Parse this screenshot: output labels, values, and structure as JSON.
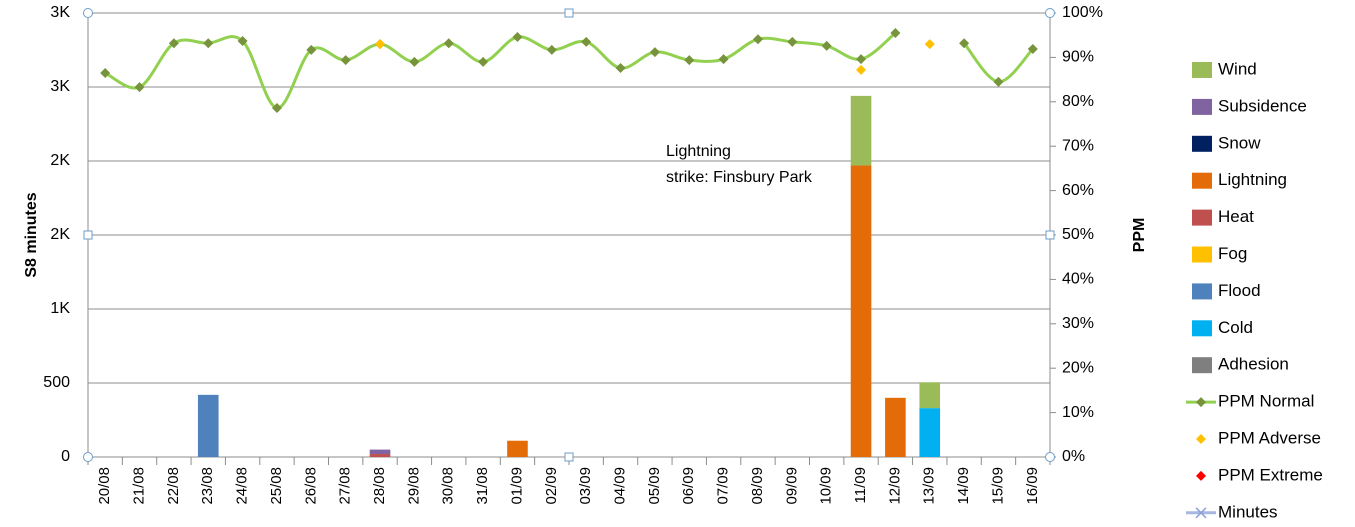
{
  "chart_data": {
    "type": "bar",
    "ylabel": "S8 minutes",
    "y2label": "PPM",
    "annotation": [
      "Lightning",
      "strike: Finsbury Park"
    ],
    "categories": [
      "20/08",
      "21/08",
      "22/08",
      "23/08",
      "24/08",
      "25/08",
      "26/08",
      "27/08",
      "28/08",
      "29/08",
      "30/08",
      "31/08",
      "01/09",
      "02/09",
      "03/09",
      "04/09",
      "05/09",
      "06/09",
      "07/09",
      "08/09",
      "09/09",
      "10/09",
      "11/09",
      "12/09",
      "13/09",
      "14/09",
      "15/09",
      "16/09"
    ],
    "ylim": [
      0,
      3000
    ],
    "yticks": [
      0,
      500,
      {
        "value": 1000,
        "label": "1K"
      },
      {
        "value": 1500,
        "label": "2K"
      },
      {
        "value": 2000,
        "label": "2K"
      },
      {
        "value": 2500,
        "label": "3K"
      },
      {
        "value": 3000,
        "label": "3K"
      }
    ],
    "y2lim": [
      0,
      100
    ],
    "y2ticks": [
      {
        "value": 0,
        "label": "0%"
      },
      {
        "value": 10,
        "label": "10%"
      },
      {
        "value": 20,
        "label": "20%"
      },
      {
        "value": 30,
        "label": "30%"
      },
      {
        "value": 40,
        "label": "40%"
      },
      {
        "value": 50,
        "label": "50%"
      },
      {
        "value": 60,
        "label": "60%"
      },
      {
        "value": 70,
        "label": "70%"
      },
      {
        "value": 80,
        "label": "80%"
      },
      {
        "value": 90,
        "label": "90%"
      },
      {
        "value": 100,
        "label": "100%"
      }
    ],
    "grid": true,
    "legend": "right",
    "series": [
      {
        "name": "Wind",
        "type": "bar",
        "color": "#9bbb59",
        "values": [
          null,
          null,
          null,
          null,
          null,
          null,
          null,
          null,
          null,
          null,
          null,
          null,
          null,
          null,
          null,
          null,
          null,
          null,
          null,
          null,
          null,
          null,
          470,
          null,
          175,
          null,
          null,
          null
        ]
      },
      {
        "name": "Subsidence",
        "type": "bar",
        "color": "#8064a2",
        "values": [
          null,
          null,
          null,
          null,
          null,
          null,
          null,
          null,
          30,
          null,
          null,
          null,
          null,
          null,
          null,
          null,
          null,
          null,
          null,
          null,
          null,
          null,
          null,
          null,
          null,
          null,
          null,
          null
        ]
      },
      {
        "name": "Snow",
        "type": "bar",
        "color": "#002060",
        "values": [
          null,
          null,
          null,
          null,
          null,
          null,
          null,
          null,
          null,
          null,
          null,
          null,
          null,
          null,
          null,
          null,
          null,
          null,
          null,
          null,
          null,
          null,
          null,
          null,
          null,
          null,
          null,
          null
        ]
      },
      {
        "name": "Lightning",
        "type": "bar",
        "color": "#e36c09",
        "values": [
          null,
          null,
          null,
          null,
          null,
          null,
          null,
          null,
          null,
          null,
          null,
          null,
          110,
          null,
          null,
          null,
          null,
          null,
          null,
          null,
          null,
          null,
          1970,
          400,
          null,
          null,
          null,
          null
        ]
      },
      {
        "name": "Heat",
        "type": "bar",
        "color": "#c0504d",
        "values": [
          null,
          null,
          null,
          null,
          null,
          null,
          null,
          null,
          20,
          null,
          null,
          null,
          null,
          null,
          null,
          null,
          null,
          null,
          null,
          null,
          null,
          null,
          null,
          null,
          null,
          null,
          null,
          null
        ]
      },
      {
        "name": "Fog",
        "type": "bar",
        "color": "#ffc000",
        "values": [
          null,
          null,
          null,
          null,
          null,
          null,
          null,
          null,
          null,
          null,
          null,
          null,
          null,
          null,
          null,
          null,
          null,
          null,
          null,
          null,
          null,
          null,
          null,
          null,
          null,
          null,
          null,
          null
        ]
      },
      {
        "name": "Flood",
        "type": "bar",
        "color": "#4f81bd",
        "values": [
          null,
          null,
          null,
          420,
          null,
          null,
          null,
          null,
          null,
          null,
          null,
          null,
          null,
          null,
          null,
          null,
          null,
          null,
          null,
          null,
          null,
          null,
          null,
          null,
          null,
          null,
          null,
          null
        ]
      },
      {
        "name": "Cold",
        "type": "bar",
        "color": "#00b0f0",
        "values": [
          null,
          null,
          null,
          null,
          null,
          null,
          null,
          null,
          null,
          null,
          null,
          null,
          null,
          null,
          null,
          null,
          null,
          null,
          null,
          null,
          null,
          null,
          null,
          null,
          330,
          null,
          null,
          null
        ]
      },
      {
        "name": "Adhesion",
        "type": "bar",
        "color": "#7f7f7f",
        "values": [
          null,
          null,
          null,
          null,
          null,
          null,
          null,
          null,
          null,
          null,
          null,
          null,
          null,
          null,
          null,
          null,
          null,
          null,
          null,
          null,
          null,
          null,
          null,
          null,
          null,
          null,
          null,
          null
        ]
      },
      {
        "name": "PPM Normal",
        "type": "line",
        "axis": "y2",
        "color": "#92d050",
        "marker_color": "#77933c",
        "values": [
          86.5,
          83.3,
          93.2,
          93.2,
          93.7,
          78.6,
          91.7,
          89.4,
          93,
          89.0,
          93.2,
          89.0,
          94.6,
          91.7,
          93.5,
          87.6,
          91.2,
          89.4,
          89.6,
          94.1,
          93.5,
          92.6,
          89.6,
          95.5,
          null,
          93.2,
          84.5,
          91.9
        ]
      },
      {
        "name": "PPM Adverse",
        "type": "scatter",
        "axis": "y2",
        "color": "#ffc000",
        "values": [
          null,
          null,
          null,
          null,
          null,
          null,
          null,
          null,
          93,
          null,
          null,
          null,
          null,
          null,
          null,
          null,
          null,
          null,
          null,
          null,
          null,
          null,
          87.2,
          null,
          93,
          null,
          null,
          null
        ]
      },
      {
        "name": "PPM Extreme",
        "type": "scatter",
        "axis": "y2",
        "color": "#ff0000",
        "values": [
          null,
          null,
          null,
          null,
          null,
          null,
          null,
          null,
          null,
          null,
          null,
          null,
          null,
          null,
          null,
          null,
          null,
          null,
          null,
          null,
          null,
          null,
          null,
          null,
          null,
          null,
          null,
          null
        ]
      },
      {
        "name": "Minutes",
        "type": "line",
        "color": "#a6b7e0",
        "values": [
          null,
          null,
          null,
          null,
          null,
          null,
          null,
          null,
          null,
          null,
          null,
          null,
          null,
          null,
          null,
          null,
          null,
          null,
          null,
          null,
          null,
          null,
          null,
          null,
          null,
          null,
          null,
          null
        ]
      }
    ]
  }
}
